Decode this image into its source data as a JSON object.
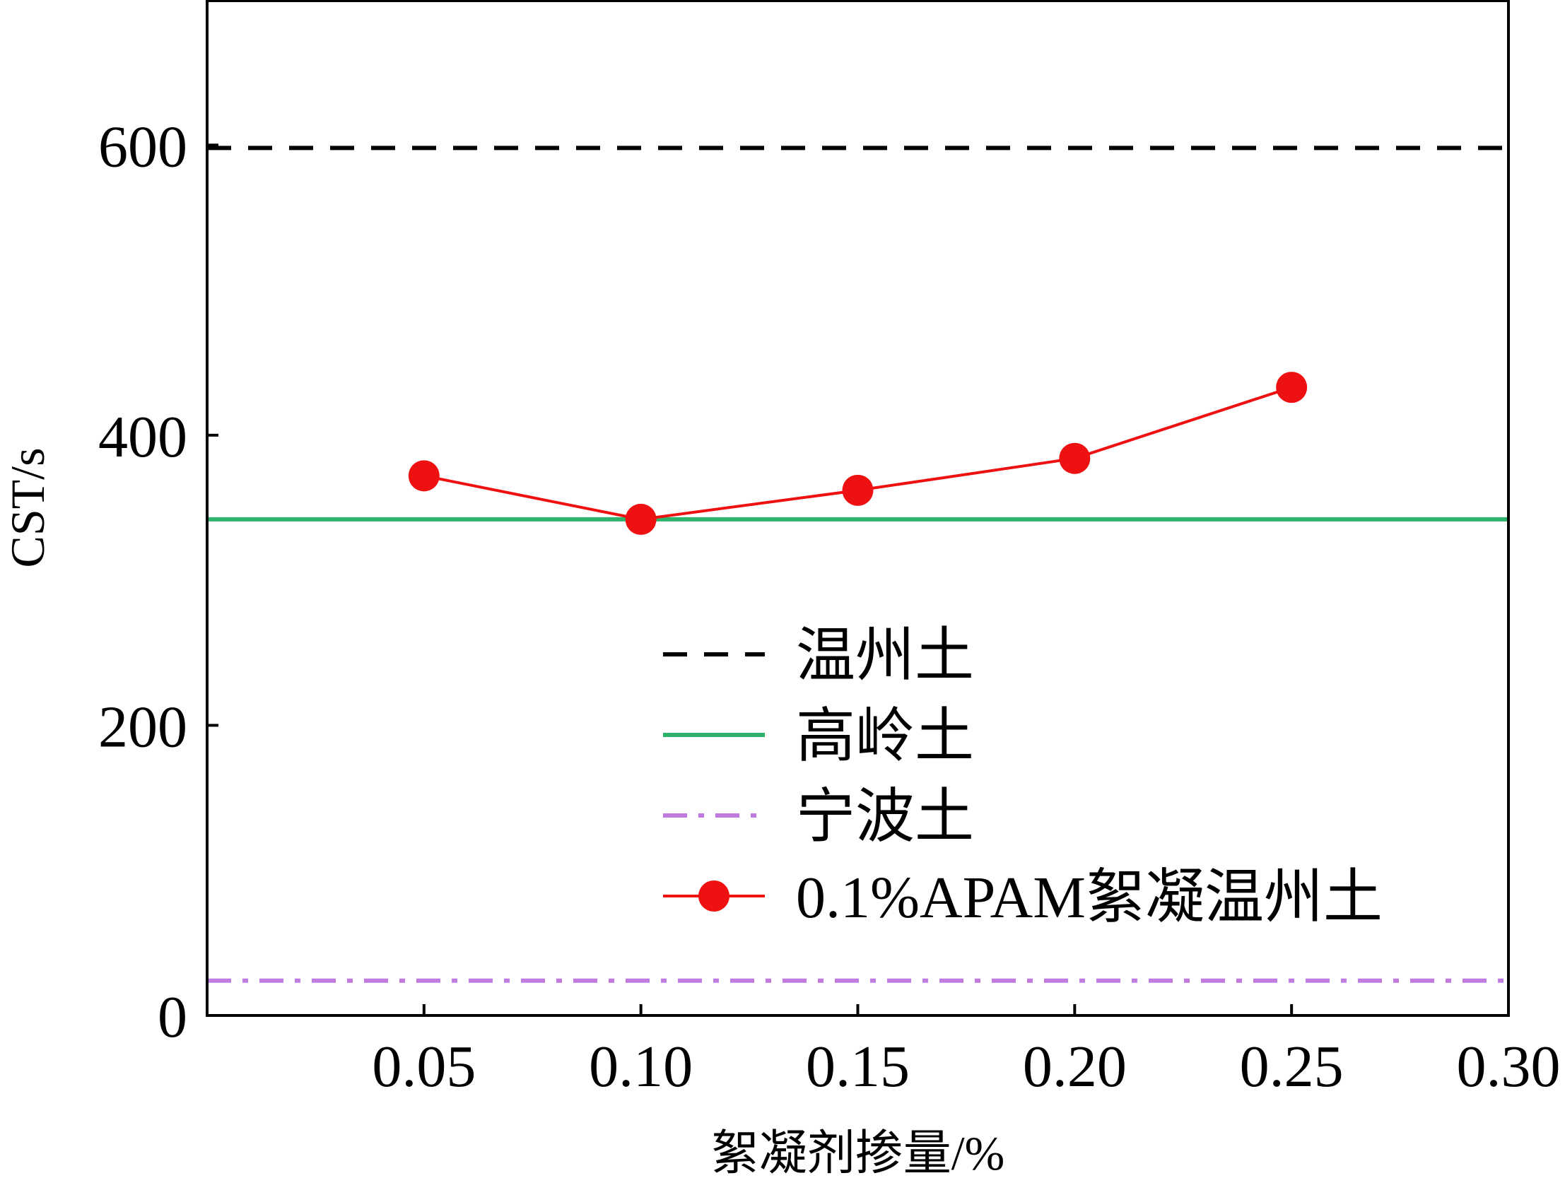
{
  "chart_data": {
    "type": "line",
    "xlabel": "絮凝剂掺量/%",
    "ylabel": "CST/s",
    "xlim": [
      0,
      0.3
    ],
    "ylim": [
      0,
      700
    ],
    "x_ticks": [
      0.05,
      0.1,
      0.15,
      0.2,
      0.25,
      0.3
    ],
    "x_tick_labels": [
      "0.05",
      "0.10",
      "0.15",
      "0.20",
      "0.25",
      "0.30"
    ],
    "y_ticks": [
      0,
      200,
      400,
      600
    ],
    "y_tick_labels": [
      "0",
      "200",
      "400",
      "600"
    ],
    "grid": false,
    "legend_position": "lower-center",
    "reference_lines": [
      {
        "name": "温州土",
        "y": 598,
        "color": "#000000",
        "style": "dashed"
      },
      {
        "name": "高岭土",
        "y": 342,
        "color": "#2db36b",
        "style": "solid"
      },
      {
        "name": "宁波土",
        "y": 24,
        "color": "#c07ae0",
        "style": "dashdot"
      }
    ],
    "series": [
      {
        "name": "0.1%APAM絮凝温州土",
        "color": "#ee1111",
        "x": [
          0.05,
          0.1,
          0.15,
          0.2,
          0.25
        ],
        "y": [
          372,
          342,
          362,
          384,
          433
        ]
      }
    ]
  }
}
